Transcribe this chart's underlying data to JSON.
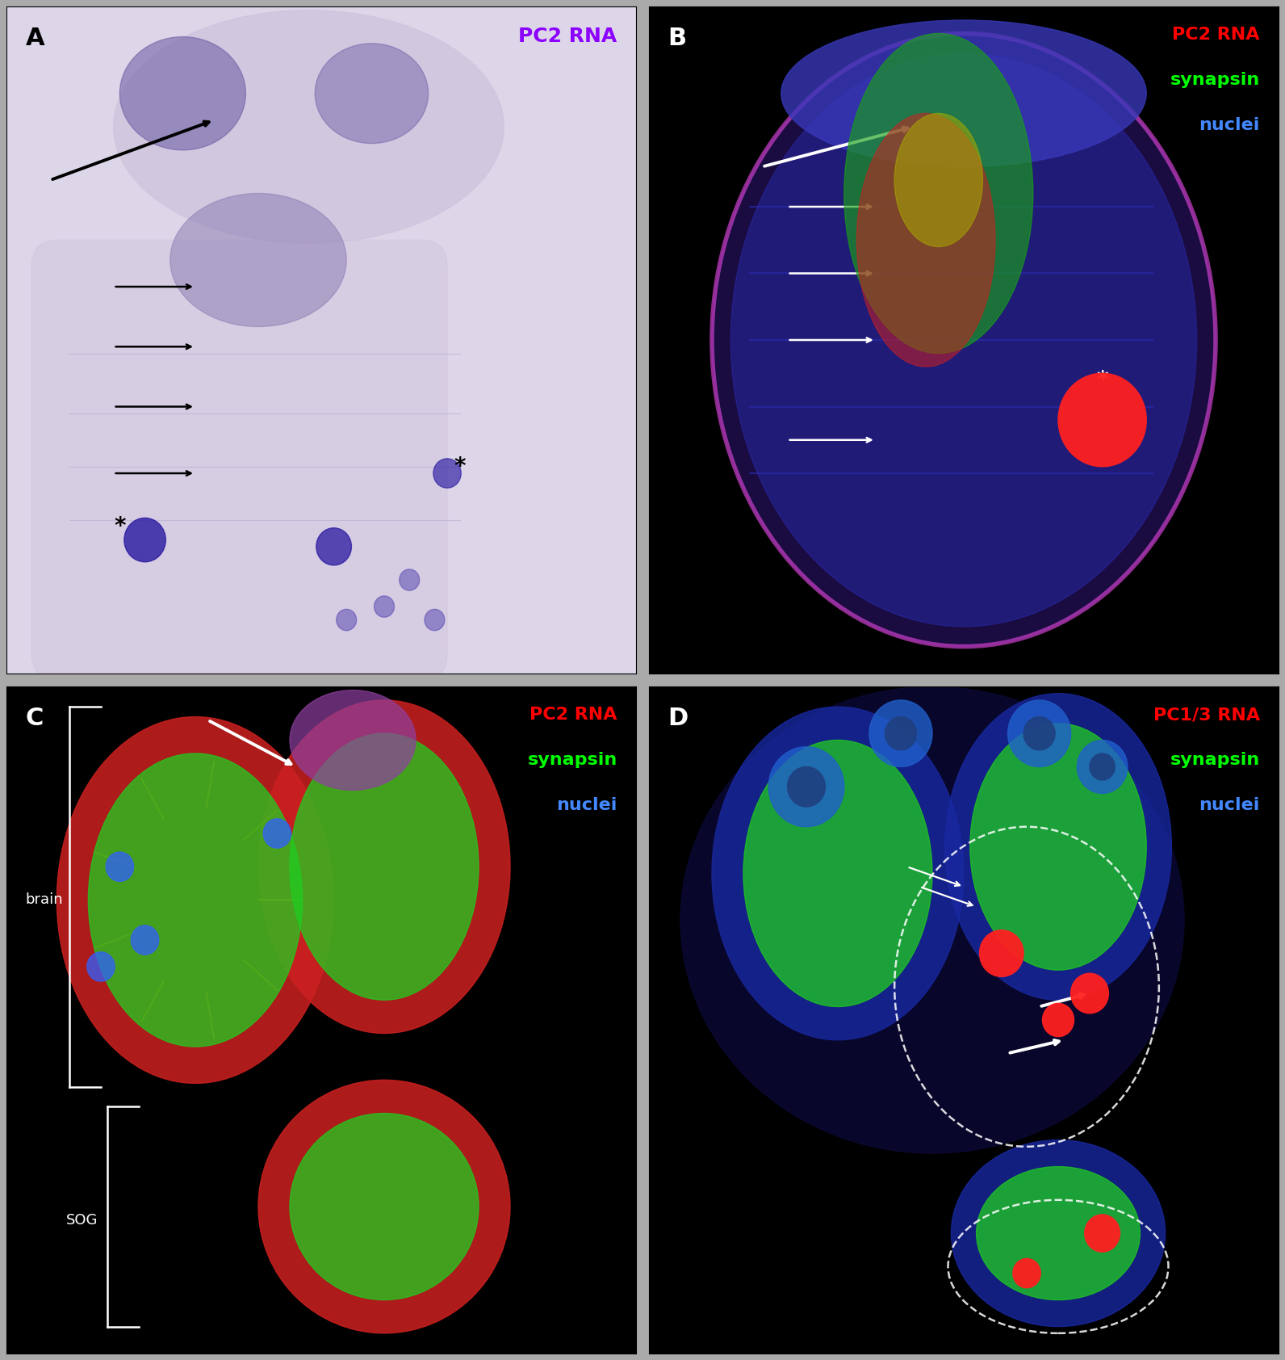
{
  "figure_width": 15.92,
  "figure_height": 16.84,
  "panels": [
    "A",
    "B",
    "C",
    "D"
  ],
  "panel_A": {
    "label": "A",
    "label_color": "black",
    "title": "PC2 RNA",
    "title_color": "#8B00FF",
    "title_fontsize": 18
  },
  "panel_B": {
    "label": "B",
    "label_color": "white",
    "legend_lines": [
      "PC2 RNA",
      "synapsin",
      "nuclei"
    ],
    "legend_colors": [
      "#ff0000",
      "#00ff00",
      "#4488ff"
    ],
    "legend_fontsize": 16
  },
  "panel_C": {
    "label": "C",
    "label_color": "white",
    "legend_lines": [
      "PC2 RNA",
      "synapsin",
      "nuclei"
    ],
    "legend_colors": [
      "#ff0000",
      "#00ff00",
      "#4488ff"
    ],
    "legend_fontsize": 16
  },
  "panel_D": {
    "label": "D",
    "label_color": "white",
    "legend_lines": [
      "PC1/3 RNA",
      "synapsin",
      "nuclei"
    ],
    "legend_colors": [
      "#ff0000",
      "#00ff00",
      "#4488ff"
    ],
    "legend_fontsize": 16
  },
  "panel_label_fontsize": 22
}
